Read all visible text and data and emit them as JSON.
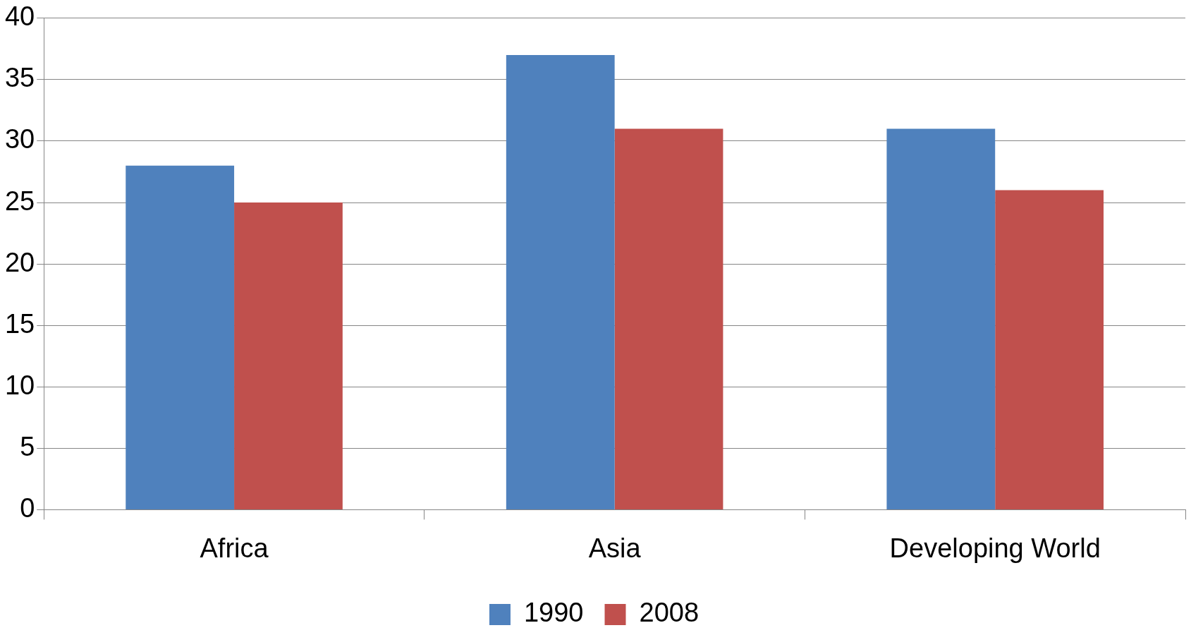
{
  "chart_data": {
    "type": "bar",
    "categories": [
      "Africa",
      "Asia",
      "Developing World"
    ],
    "series": [
      {
        "name": "1990",
        "color": "#4f81bd",
        "values": [
          28,
          37,
          31
        ]
      },
      {
        "name": "2008",
        "color": "#c0504d",
        "values": [
          25,
          31,
          26
        ]
      }
    ],
    "ylim": [
      0,
      40
    ],
    "yticks": [
      0,
      5,
      10,
      15,
      20,
      25,
      30,
      35,
      40
    ],
    "grid": "y",
    "legend": "bottom"
  }
}
